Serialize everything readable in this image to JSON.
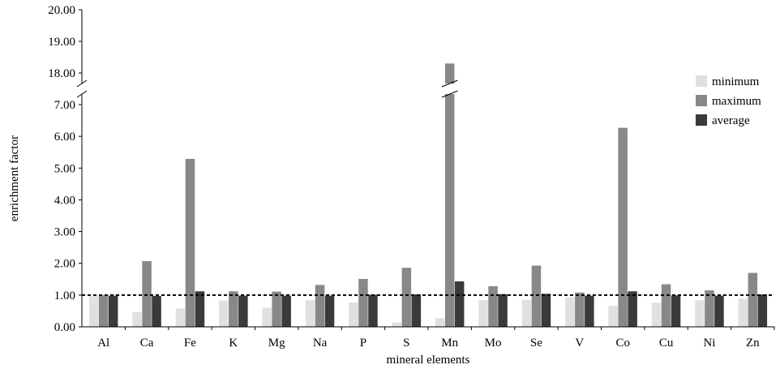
{
  "chart_data": {
    "type": "bar",
    "xlabel": "mineral elements",
    "ylabel": "enrichment factor",
    "categories": [
      "Al",
      "Ca",
      "Fe",
      "K",
      "Mg",
      "Na",
      "P",
      "S",
      "Mn",
      "Mo",
      "Se",
      "V",
      "Co",
      "Cu",
      "Ni",
      "Zn"
    ],
    "series": [
      {
        "name": "minimum",
        "color": "#e0e0e0",
        "values": [
          0.96,
          0.46,
          0.58,
          0.83,
          0.6,
          0.84,
          0.77,
          0.14,
          0.27,
          0.84,
          0.85,
          0.93,
          0.66,
          0.76,
          0.84,
          0.89
        ]
      },
      {
        "name": "maximum",
        "color": "#888888",
        "values": [
          1.0,
          2.07,
          5.29,
          1.12,
          1.11,
          1.32,
          1.51,
          1.86,
          18.3,
          1.28,
          1.93,
          1.08,
          6.27,
          1.34,
          1.15,
          1.7
        ]
      },
      {
        "name": "average",
        "color": "#3a3a3a",
        "values": [
          0.98,
          0.97,
          1.12,
          0.98,
          0.98,
          0.98,
          1.01,
          1.02,
          1.43,
          1.03,
          1.04,
          0.98,
          1.12,
          0.99,
          0.98,
          1.02
        ]
      }
    ],
    "yticks_lower": [
      "0.00",
      "1.00",
      "2.00",
      "3.00",
      "4.00",
      "5.00",
      "6.00",
      "7.00"
    ],
    "yticks_upper": [
      "18.00",
      "19.00",
      "20.00"
    ],
    "y_axis_break": [
      7.0,
      18.0
    ],
    "ylim": [
      0,
      20
    ],
    "reference_line": 1.0,
    "legend_position": "right",
    "grid": false
  }
}
